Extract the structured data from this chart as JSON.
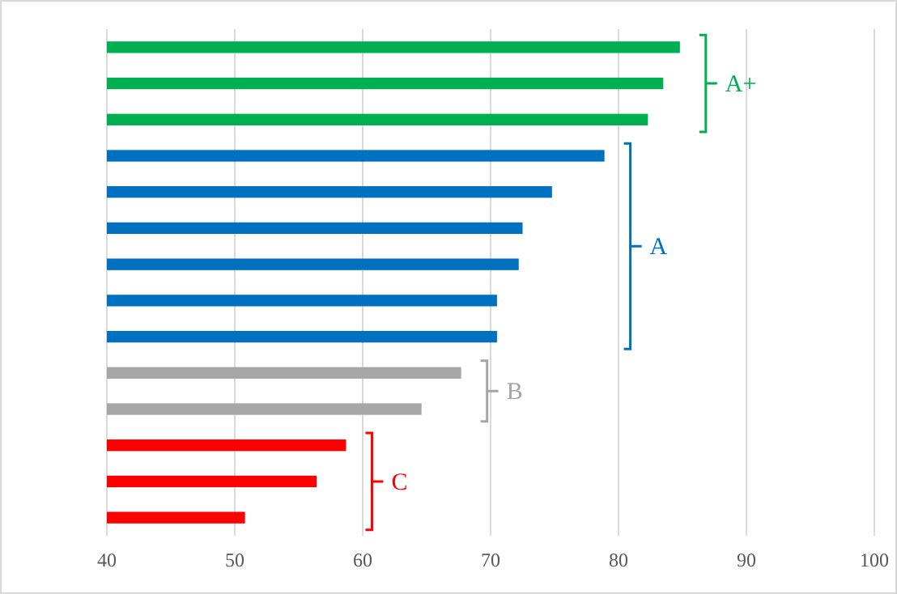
{
  "chart_data": {
    "type": "bar",
    "orientation": "horizontal",
    "categories": [
      null,
      null,
      null,
      null,
      null,
      null,
      null,
      null,
      null,
      null,
      null,
      null,
      null,
      null
    ],
    "values": [
      84.8,
      83.5,
      82.3,
      78.9,
      74.8,
      72.5,
      72.2,
      70.5,
      70.5,
      67.7,
      64.6,
      58.7,
      56.4,
      50.8
    ],
    "colors": [
      "#00b050",
      "#00b050",
      "#00b050",
      "#0070c0",
      "#0070c0",
      "#0070c0",
      "#0070c0",
      "#0070c0",
      "#0070c0",
      "#a6a6a6",
      "#a6a6a6",
      "#ff0000",
      "#ff0000",
      "#ff0000"
    ],
    "xlim": [
      40,
      100
    ],
    "xticks": [
      40,
      50,
      60,
      70,
      80,
      90,
      100
    ],
    "grid": "x",
    "annotations": [
      "A+",
      "A",
      "B",
      "C"
    ]
  }
}
